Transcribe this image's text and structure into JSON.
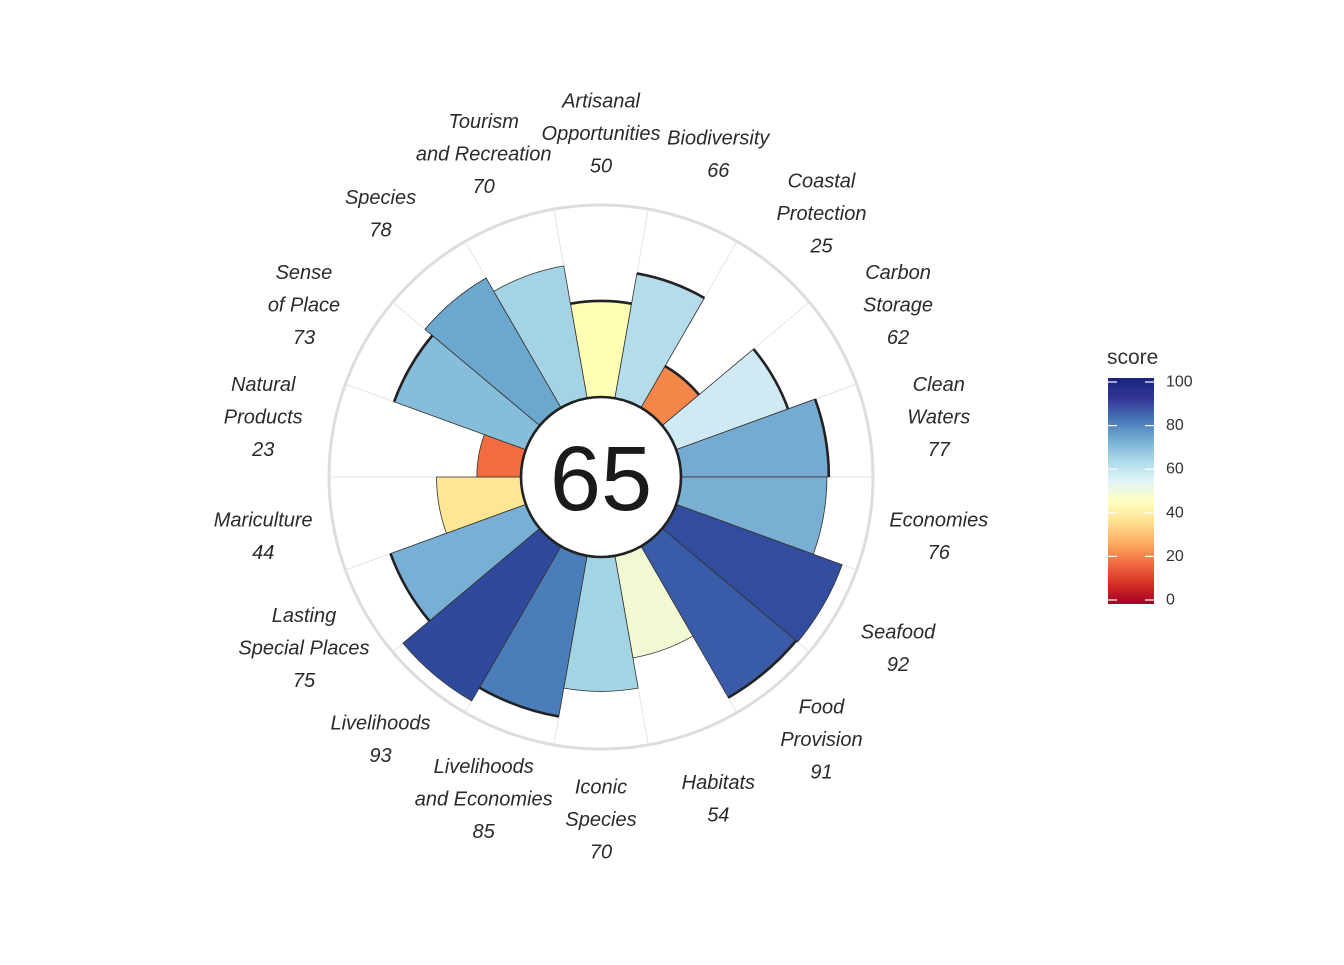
{
  "chart_data": {
    "type": "rose",
    "center_value": "65",
    "max_value": 100,
    "petals": [
      {
        "label": "Artisanal\nOpportunities",
        "value": 50,
        "value_label": "50",
        "color": "#FEFEB4",
        "outline": true
      },
      {
        "label": "Biodiversity",
        "value": 66,
        "value_label": "66",
        "color": "#B5DCEA",
        "outline": true
      },
      {
        "label": "Coastal\nProtection",
        "value": 25,
        "value_label": "25",
        "color": "#F4864A",
        "outline": true
      },
      {
        "label": "Carbon\nStorage",
        "value": 62,
        "value_label": "62",
        "color": "#D0EAF3",
        "outline": true
      },
      {
        "label": "Clean\nWaters",
        "value": 77,
        "value_label": "77",
        "color": "#76ABD1",
        "outline": true
      },
      {
        "label": "Economies",
        "value": 76,
        "value_label": "76",
        "color": "#78AFD3",
        "outline": false
      },
      {
        "label": "Seafood",
        "value": 92,
        "value_label": "92",
        "color": "#324D9E",
        "outline": false
      },
      {
        "label": "Food\nProvision",
        "value": 91,
        "value_label": "91",
        "color": "#3A5CA8",
        "outline": true
      },
      {
        "label": "Habitats",
        "value": 54,
        "value_label": "54",
        "color": "#F0F9D4",
        "outline": false
      },
      {
        "label": "Iconic\nSpecies",
        "value": 70,
        "value_label": "70",
        "color": "#A2D4E4",
        "outline": false
      },
      {
        "label": "Livelihoods\nand Economies",
        "value": 85,
        "value_label": "85",
        "color": "#4A7DB9",
        "outline": true
      },
      {
        "label": "Livelihoods",
        "value": 93,
        "value_label": "93",
        "color": "#2F4A9C",
        "outline": false
      },
      {
        "label": "Lasting\nSpecial Places",
        "value": 75,
        "value_label": "75",
        "color": "#78AFD4",
        "outline": true
      },
      {
        "label": "Mariculture",
        "value": 44,
        "value_label": "44",
        "color": "#FEE693",
        "outline": false
      },
      {
        "label": "Natural\nProducts",
        "value": 23,
        "value_label": "23",
        "color": "#F26C42",
        "outline": false
      },
      {
        "label": "Sense\nof Place",
        "value": 73,
        "value_label": "73",
        "color": "#86BDDB",
        "outline": true
      },
      {
        "label": "Species",
        "value": 78,
        "value_label": "78",
        "color": "#6CA7CD",
        "outline": false
      },
      {
        "label": "Tourism\nand Recreation",
        "value": 70,
        "value_label": "70",
        "color": "#A3D3E4",
        "outline": false
      }
    ],
    "legend": {
      "title": "score",
      "ticks": [
        "0",
        "20",
        "40",
        "60",
        "80",
        "100"
      ],
      "range": [
        0,
        100
      ],
      "colors": [
        "#A50026",
        "#D73027",
        "#F46D43",
        "#FDAE61",
        "#FEE090",
        "#FFFFBF",
        "#E0F3F8",
        "#ABD9E9",
        "#74ADD1",
        "#4575B4",
        "#313695",
        "#1A237E"
      ]
    }
  }
}
